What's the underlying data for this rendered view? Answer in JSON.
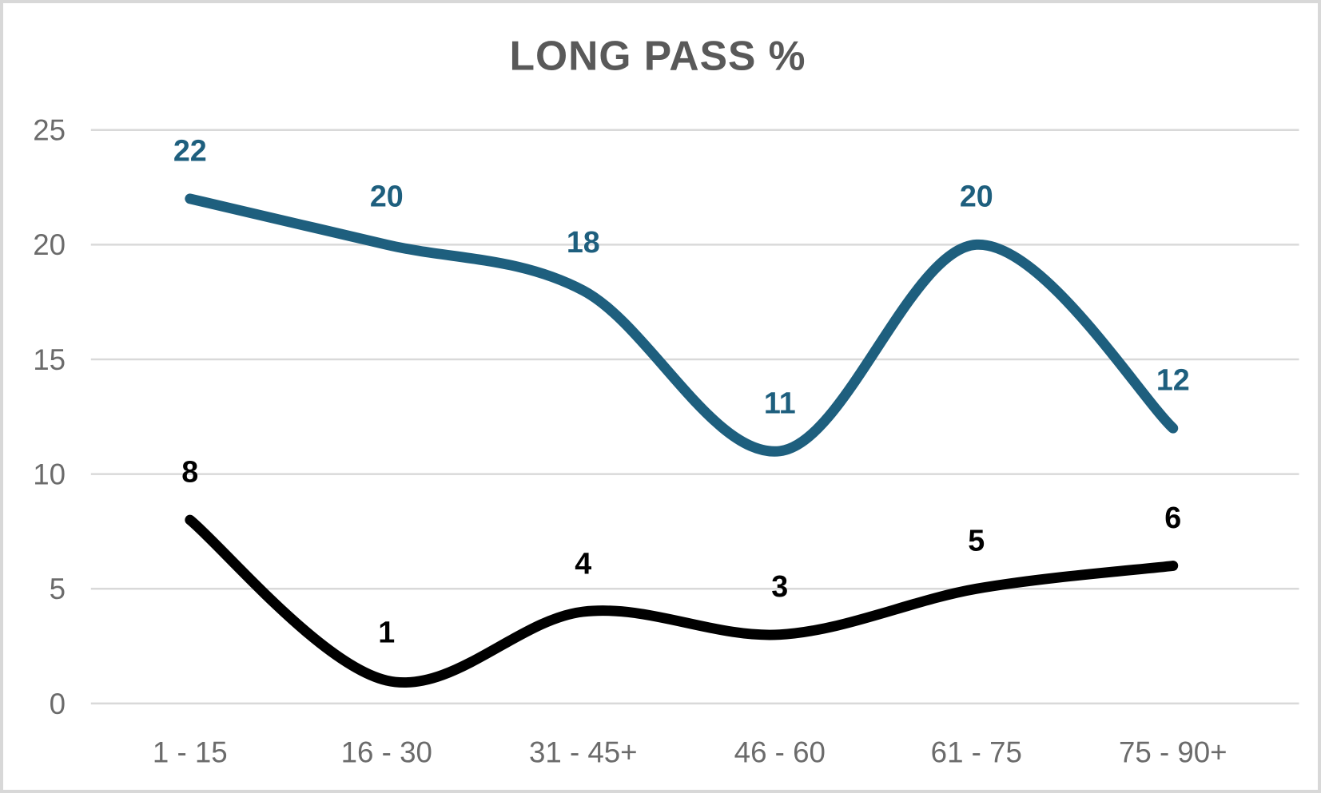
{
  "chart_data": {
    "type": "line",
    "title": "LONG PASS %",
    "categories": [
      "1 - 15",
      "16 - 30",
      "31 - 45+",
      "46 - 60",
      "61 - 75",
      "75 - 90+"
    ],
    "series": [
      {
        "name": "long-pass-black-series",
        "color": "#000000",
        "label_color": "#000000",
        "values": [
          8,
          1,
          4,
          3,
          5,
          6
        ]
      },
      {
        "name": "long-pass-teal-series",
        "color": "#1E5F7E",
        "label_color": "#1E5F7E",
        "values": [
          22,
          20,
          18,
          11,
          20,
          12
        ]
      }
    ],
    "ylabel": "",
    "xlabel": "",
    "ylim": [
      0,
      25
    ],
    "yticks": [
      0,
      5,
      10,
      15,
      20,
      25
    ],
    "grid": true,
    "smooth": true,
    "legend": "none",
    "data_labels": "above-points"
  },
  "style": {
    "title_color": "#595959",
    "axis_label_color": "#6b6b6b",
    "gridline_color": "#d9d9d9",
    "background_color": "#ffffff",
    "border_color": "#d8d8d8"
  }
}
